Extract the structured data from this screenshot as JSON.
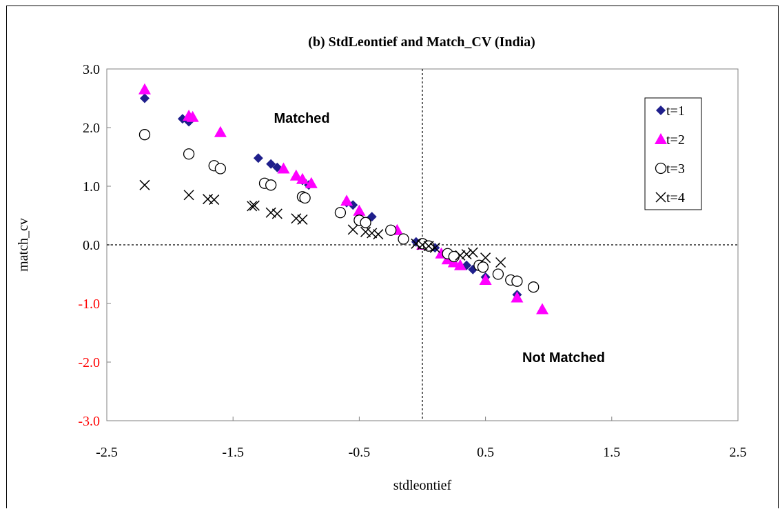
{
  "chart_data": {
    "type": "scatter",
    "title": "(b) StdLeontief and Match_CV (India)",
    "xlabel": "stdleontief",
    "ylabel": "match_cv",
    "xlim": [
      -2.5,
      2.5
    ],
    "ylim": [
      -3.0,
      3.0
    ],
    "x_ticks": [
      -2.5,
      -1.5,
      -0.5,
      0.5,
      1.5,
      2.5
    ],
    "x_tick_labels": [
      "-2.5",
      "-1.5",
      "-0.5",
      "0.5",
      "1.5",
      "2.5"
    ],
    "y_ticks": [
      3.0,
      2.0,
      1.0,
      0.0,
      -1.0,
      -2.0,
      -3.0
    ],
    "y_tick_labels": [
      "3.0",
      "2.0",
      "1.0",
      "0.0",
      "-1.0",
      "-2.0",
      "-3.0"
    ],
    "negative_tick_color": "#ff0000",
    "grid": false,
    "reference_lines": {
      "x": 0.0,
      "y": 0.0,
      "style": "dashed"
    },
    "legend_position": "top-right",
    "annotations": [
      {
        "text": "Matched",
        "x": -0.95,
        "y": 2.15
      },
      {
        "text": "Not Matched",
        "x": 0.95,
        "y": -1.95
      }
    ],
    "series": [
      {
        "name": "t=1",
        "marker": "diamond",
        "color": "#1f1f8c",
        "points": [
          [
            -2.2,
            2.5
          ],
          [
            -1.9,
            2.15
          ],
          [
            -1.85,
            2.1
          ],
          [
            -1.3,
            1.48
          ],
          [
            -1.2,
            1.38
          ],
          [
            -1.15,
            1.32
          ],
          [
            -0.95,
            1.1
          ],
          [
            -0.9,
            1.02
          ],
          [
            -0.6,
            0.72
          ],
          [
            -0.55,
            0.68
          ],
          [
            -0.4,
            0.48
          ],
          [
            -0.25,
            0.25
          ],
          [
            -0.05,
            0.05
          ],
          [
            0.1,
            -0.05
          ],
          [
            0.2,
            -0.2
          ],
          [
            0.25,
            -0.25
          ],
          [
            0.35,
            -0.35
          ],
          [
            0.4,
            -0.42
          ],
          [
            0.5,
            -0.55
          ],
          [
            0.75,
            -0.85
          ]
        ]
      },
      {
        "name": "t=2",
        "marker": "triangle",
        "color": "#ff00ff",
        "points": [
          [
            -2.2,
            2.65
          ],
          [
            -1.85,
            2.2
          ],
          [
            -1.82,
            2.18
          ],
          [
            -1.6,
            1.92
          ],
          [
            -1.1,
            1.3
          ],
          [
            -1.0,
            1.18
          ],
          [
            -0.95,
            1.12
          ],
          [
            -0.88,
            1.05
          ],
          [
            -0.6,
            0.75
          ],
          [
            -0.5,
            0.58
          ],
          [
            -0.2,
            0.25
          ],
          [
            0.0,
            0.0
          ],
          [
            0.15,
            -0.15
          ],
          [
            0.2,
            -0.25
          ],
          [
            0.25,
            -0.3
          ],
          [
            0.3,
            -0.35
          ],
          [
            0.5,
            -0.6
          ],
          [
            0.75,
            -0.9
          ],
          [
            0.95,
            -1.1
          ]
        ]
      },
      {
        "name": "t=3",
        "marker": "circle",
        "color": "#000000",
        "points": [
          [
            -2.2,
            1.88
          ],
          [
            -1.85,
            1.55
          ],
          [
            -1.65,
            1.35
          ],
          [
            -1.6,
            1.3
          ],
          [
            -1.25,
            1.05
          ],
          [
            -1.2,
            1.02
          ],
          [
            -0.95,
            0.82
          ],
          [
            -0.93,
            0.8
          ],
          [
            -0.65,
            0.55
          ],
          [
            -0.5,
            0.42
          ],
          [
            -0.45,
            0.38
          ],
          [
            -0.25,
            0.25
          ],
          [
            -0.15,
            0.1
          ],
          [
            0.0,
            0.02
          ],
          [
            0.05,
            -0.02
          ],
          [
            0.2,
            -0.15
          ],
          [
            0.25,
            -0.2
          ],
          [
            0.45,
            -0.35
          ],
          [
            0.48,
            -0.38
          ],
          [
            0.6,
            -0.5
          ],
          [
            0.7,
            -0.6
          ],
          [
            0.75,
            -0.62
          ],
          [
            0.88,
            -0.72
          ]
        ]
      },
      {
        "name": "t=4",
        "marker": "x",
        "color": "#000000",
        "points": [
          [
            -2.2,
            1.02
          ],
          [
            -1.85,
            0.85
          ],
          [
            -1.7,
            0.78
          ],
          [
            -1.65,
            0.77
          ],
          [
            -1.35,
            0.66
          ],
          [
            -1.33,
            0.67
          ],
          [
            -1.2,
            0.55
          ],
          [
            -1.15,
            0.53
          ],
          [
            -1.0,
            0.45
          ],
          [
            -0.95,
            0.43
          ],
          [
            -0.55,
            0.26
          ],
          [
            -0.45,
            0.22
          ],
          [
            -0.4,
            0.2
          ],
          [
            -0.35,
            0.18
          ],
          [
            -0.05,
            0.02
          ],
          [
            0.0,
            0.0
          ],
          [
            0.05,
            -0.02
          ],
          [
            0.1,
            -0.05
          ],
          [
            0.3,
            -0.18
          ],
          [
            0.35,
            -0.16
          ],
          [
            0.4,
            -0.13
          ],
          [
            0.5,
            -0.22
          ],
          [
            0.62,
            -0.3
          ]
        ]
      }
    ]
  }
}
